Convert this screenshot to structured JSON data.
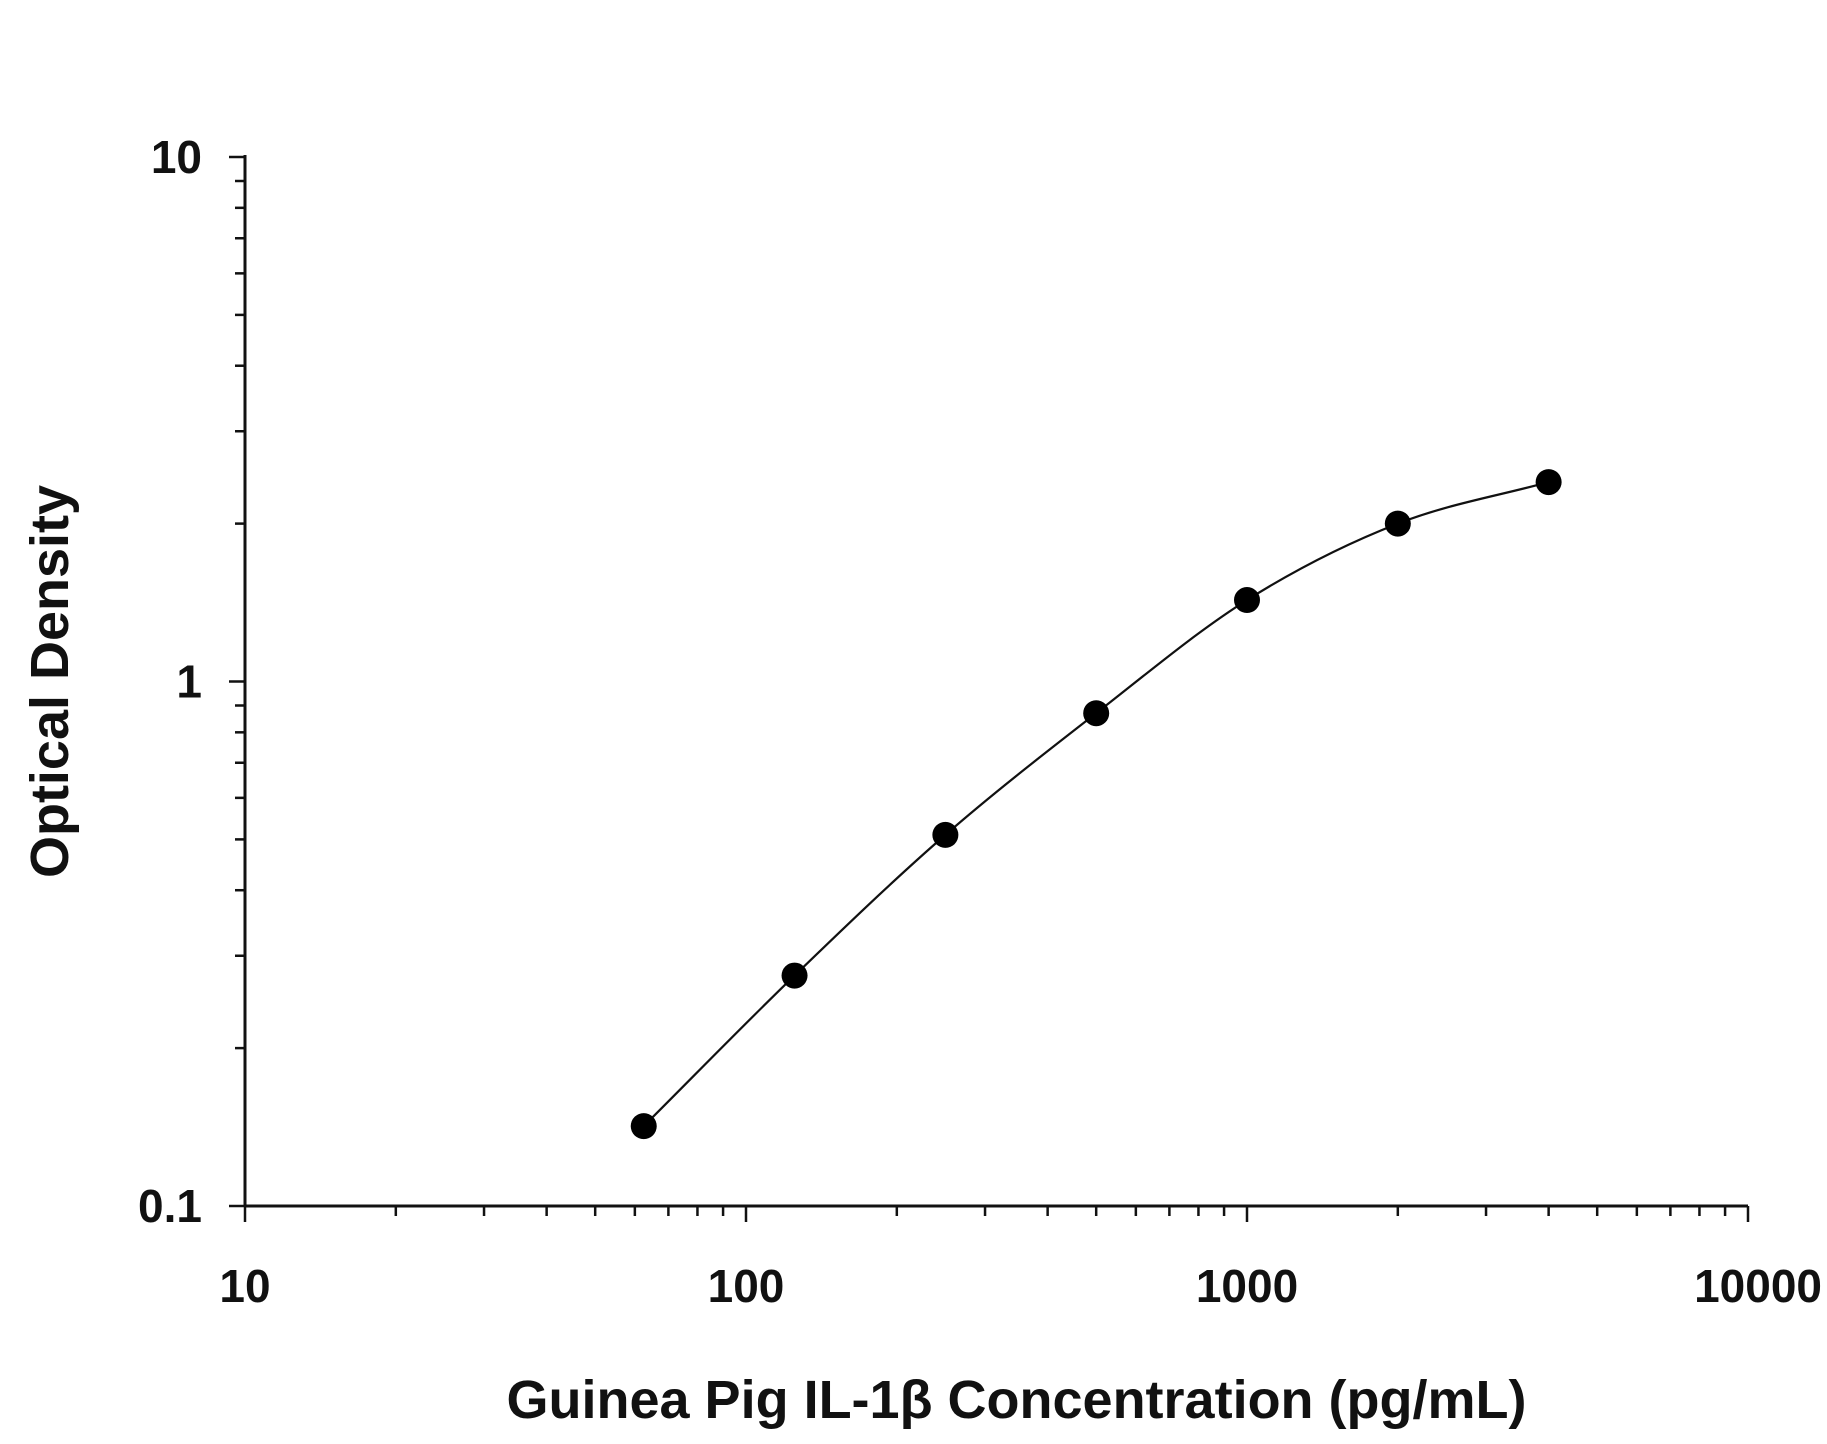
{
  "chart_data": {
    "type": "scatter",
    "xlabel": "Guinea Pig IL-1β Concentration (pg/mL)",
    "ylabel": "Optical Density",
    "x_scale": "log",
    "y_scale": "log",
    "xlim": [
      10,
      10000
    ],
    "ylim": [
      0.1,
      10
    ],
    "x_tick_labels": [
      "10",
      "100",
      "1000",
      "10000"
    ],
    "y_tick_labels": [
      "0.1",
      "1",
      "10"
    ],
    "grid": false,
    "fit_curve": true,
    "series": [
      {
        "x": [
          62.5,
          125,
          250,
          500,
          1000,
          2000,
          4000
        ],
        "y": [
          0.142,
          0.275,
          0.51,
          0.87,
          1.43,
          2.0,
          2.4
        ]
      }
    ],
    "colors": {
      "points": "#000000",
      "line": "#111111"
    }
  }
}
